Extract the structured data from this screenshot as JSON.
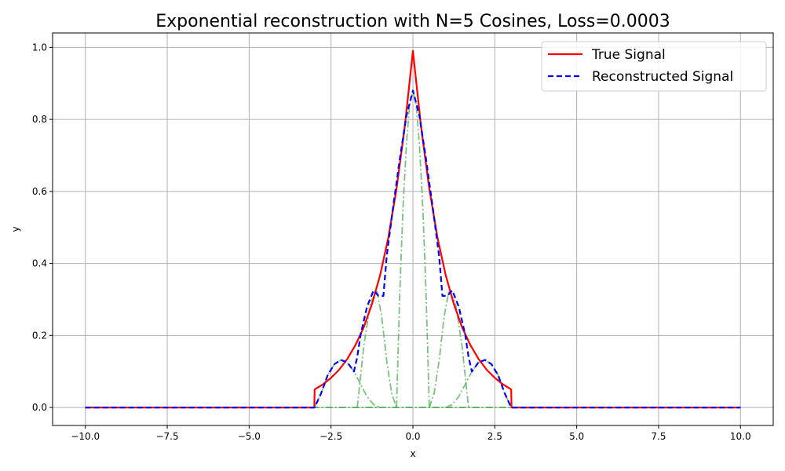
{
  "chart_data": {
    "type": "line",
    "title": "Exponential reconstruction with N=5 Cosines, Loss=0.0003",
    "xlabel": "x",
    "ylabel": "y",
    "xlim": [
      -11.0,
      11.0
    ],
    "ylim": [
      -0.05,
      1.04
    ],
    "xticks": [
      -10.0,
      -7.5,
      -5.0,
      -2.5,
      0.0,
      2.5,
      5.0,
      7.5,
      10.0
    ],
    "xtick_labels": [
      "−10.0",
      "−7.5",
      "−5.0",
      "−2.5",
      "0.0",
      "2.5",
      "5.0",
      "7.5",
      "10.0"
    ],
    "yticks": [
      0.0,
      0.2,
      0.4,
      0.6,
      0.8,
      1.0
    ],
    "ytick_labels": [
      "0.0",
      "0.2",
      "0.4",
      "0.6",
      "0.8",
      "1.0"
    ],
    "grid": true,
    "legend_position": "top-right",
    "legend": [
      "True Signal",
      "Reconstructed Signal"
    ],
    "series": [
      {
        "name": "True Signal",
        "color": "#ff0000",
        "style": "solid",
        "x": [
          -10,
          -3.01,
          -3.0,
          -2.75,
          -2.5,
          -2.25,
          -2.0,
          -1.75,
          -1.5,
          -1.25,
          -1.0,
          -0.75,
          -0.5,
          -0.25,
          0.0,
          0.25,
          0.5,
          0.75,
          1.0,
          1.25,
          1.5,
          1.75,
          2.0,
          2.25,
          2.5,
          2.75,
          3.0,
          3.01,
          10
        ],
        "y": [
          0,
          0,
          0.05,
          0.064,
          0.082,
          0.105,
          0.135,
          0.174,
          0.223,
          0.287,
          0.368,
          0.472,
          0.607,
          0.779,
          0.99,
          0.779,
          0.607,
          0.472,
          0.368,
          0.287,
          0.223,
          0.174,
          0.135,
          0.105,
          0.082,
          0.064,
          0.05,
          0,
          0
        ]
      },
      {
        "name": "Reconstructed Signal",
        "color": "#0000ff",
        "style": "dashed",
        "x": [
          -10,
          -3.0,
          -2.8,
          -2.6,
          -2.4,
          -2.2,
          -2.0,
          -1.8,
          -1.7,
          -1.6,
          -1.4,
          -1.2,
          -1.05,
          -0.9,
          -0.8,
          -0.6,
          -0.4,
          -0.2,
          0.0,
          0.2,
          0.4,
          0.6,
          0.8,
          0.9,
          1.05,
          1.2,
          1.4,
          1.6,
          1.7,
          1.8,
          2.0,
          2.2,
          2.4,
          2.6,
          2.8,
          3.0,
          10
        ],
        "y": [
          0,
          0,
          0.04,
          0.09,
          0.12,
          0.132,
          0.125,
          0.1,
          0.14,
          0.2,
          0.28,
          0.325,
          0.31,
          0.31,
          0.42,
          0.56,
          0.69,
          0.81,
          0.88,
          0.81,
          0.69,
          0.56,
          0.42,
          0.31,
          0.31,
          0.325,
          0.28,
          0.2,
          0.14,
          0.1,
          0.125,
          0.132,
          0.12,
          0.09,
          0.04,
          0,
          0
        ]
      }
    ],
    "component_color": "#4caf50",
    "components": [
      {
        "x": [
          -10,
          10
        ],
        "y": [
          0,
          0
        ]
      },
      {
        "x": [
          -0.5,
          -0.4,
          -0.3,
          -0.2,
          -0.1,
          0.0,
          0.1,
          0.2,
          0.3,
          0.4,
          0.5
        ],
        "y": [
          0,
          0.32,
          0.56,
          0.73,
          0.84,
          0.88,
          0.84,
          0.73,
          0.56,
          0.32,
          0
        ]
      },
      {
        "x": [
          -1.7,
          -1.5,
          -1.3,
          -1.1,
          -0.95,
          -0.8,
          -0.65,
          -0.5
        ],
        "y": [
          0,
          0.17,
          0.29,
          0.325,
          0.25,
          0.13,
          0.04,
          0
        ]
      },
      {
        "x": [
          0.5,
          0.65,
          0.8,
          0.95,
          1.1,
          1.3,
          1.5,
          1.7
        ],
        "y": [
          0,
          0.04,
          0.13,
          0.25,
          0.325,
          0.29,
          0.17,
          0
        ]
      },
      {
        "x": [
          -3.0,
          -2.8,
          -2.6,
          -2.4,
          -2.2,
          -2.0,
          -1.8,
          -1.6,
          -1.4,
          -1.2,
          -1.0
        ],
        "y": [
          0,
          0.04,
          0.09,
          0.12,
          0.132,
          0.125,
          0.1,
          0.065,
          0.03,
          0.008,
          0
        ]
      },
      {
        "x": [
          1.0,
          1.2,
          1.4,
          1.6,
          1.8,
          2.0,
          2.2,
          2.4,
          2.6,
          2.8,
          3.0
        ],
        "y": [
          0,
          0.008,
          0.03,
          0.065,
          0.1,
          0.125,
          0.132,
          0.12,
          0.09,
          0.04,
          0
        ]
      }
    ]
  }
}
